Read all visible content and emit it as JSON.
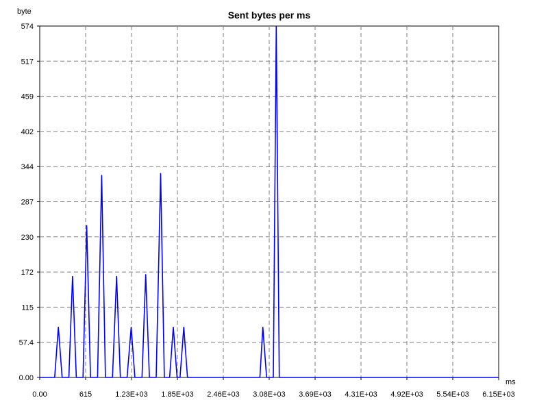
{
  "chart_data": {
    "type": "line",
    "title": "Sent bytes per ms",
    "xlabel": "ms",
    "ylabel": "byte",
    "xlim": [
      0,
      6150
    ],
    "ylim": [
      0,
      574
    ],
    "x_ticks": [
      "0.00",
      "615",
      "1.23E+03",
      "1.85E+03",
      "2.46E+03",
      "3.08E+03",
      "3.69E+03",
      "4.31E+03",
      "4.92E+03",
      "5.54E+03",
      "6.15E+03"
    ],
    "y_ticks": [
      "0.00",
      "57.4",
      "115",
      "172",
      "230",
      "287",
      "344",
      "402",
      "459",
      "517",
      "574"
    ],
    "grid": true,
    "series": [
      {
        "color": "#0000ff",
        "points": [
          [
            0,
            0
          ],
          [
            200,
            0
          ],
          [
            250,
            82
          ],
          [
            300,
            0
          ],
          [
            390,
            0
          ],
          [
            440,
            165
          ],
          [
            490,
            0
          ],
          [
            580,
            0
          ],
          [
            630,
            248
          ],
          [
            680,
            0
          ],
          [
            775,
            0
          ],
          [
            830,
            330
          ],
          [
            880,
            0
          ],
          [
            975,
            0
          ],
          [
            1030,
            165
          ],
          [
            1080,
            0
          ],
          [
            1170,
            0
          ],
          [
            1225,
            82
          ],
          [
            1275,
            0
          ],
          [
            1370,
            0
          ],
          [
            1420,
            168
          ],
          [
            1470,
            0
          ],
          [
            1560,
            0
          ],
          [
            1620,
            333
          ],
          [
            1670,
            0
          ],
          [
            1740,
            0
          ],
          [
            1790,
            82
          ],
          [
            1840,
            0
          ],
          [
            1880,
            0
          ],
          [
            1930,
            82
          ],
          [
            1980,
            0
          ],
          [
            2950,
            0
          ],
          [
            2990,
            82
          ],
          [
            3040,
            0
          ],
          [
            3130,
            0
          ],
          [
            3170,
            574
          ],
          [
            3210,
            0
          ],
          [
            6150,
            0
          ]
        ]
      }
    ]
  }
}
